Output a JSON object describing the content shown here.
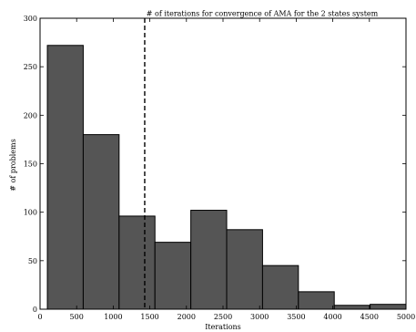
{
  "chart_data": {
    "type": "bar",
    "title": "# of iterations for convergence of AMA for the 2 states system",
    "xlabel": "Iterations",
    "ylabel": "# of problems",
    "xlim": [
      0,
      5000
    ],
    "ylim": [
      0,
      300
    ],
    "x_ticks": [
      "0",
      "500",
      "1000",
      "1500",
      "2000",
      "2500",
      "3000",
      "3500",
      "4000",
      "4500",
      "5000"
    ],
    "y_ticks": [
      "0",
      "50",
      "100",
      "150",
      "200",
      "250",
      "300"
    ],
    "bins": [
      {
        "start": 100,
        "end": 590,
        "count": 272
      },
      {
        "start": 590,
        "end": 1080,
        "count": 180
      },
      {
        "start": 1080,
        "end": 1570,
        "count": 96
      },
      {
        "start": 1570,
        "end": 2060,
        "count": 69
      },
      {
        "start": 2060,
        "end": 2550,
        "count": 102
      },
      {
        "start": 2550,
        "end": 3040,
        "count": 82
      },
      {
        "start": 3040,
        "end": 3530,
        "count": 45
      },
      {
        "start": 3530,
        "end": 4020,
        "count": 18
      },
      {
        "start": 4020,
        "end": 4510,
        "count": 4
      },
      {
        "start": 4510,
        "end": 5000,
        "count": 5
      }
    ],
    "vline": {
      "x": 1430,
      "style": "dashed"
    },
    "colors": {
      "bar_fill": "#555555",
      "bar_edge": "#000000",
      "axis": "#000000"
    },
    "grid": false,
    "legend": "none"
  }
}
